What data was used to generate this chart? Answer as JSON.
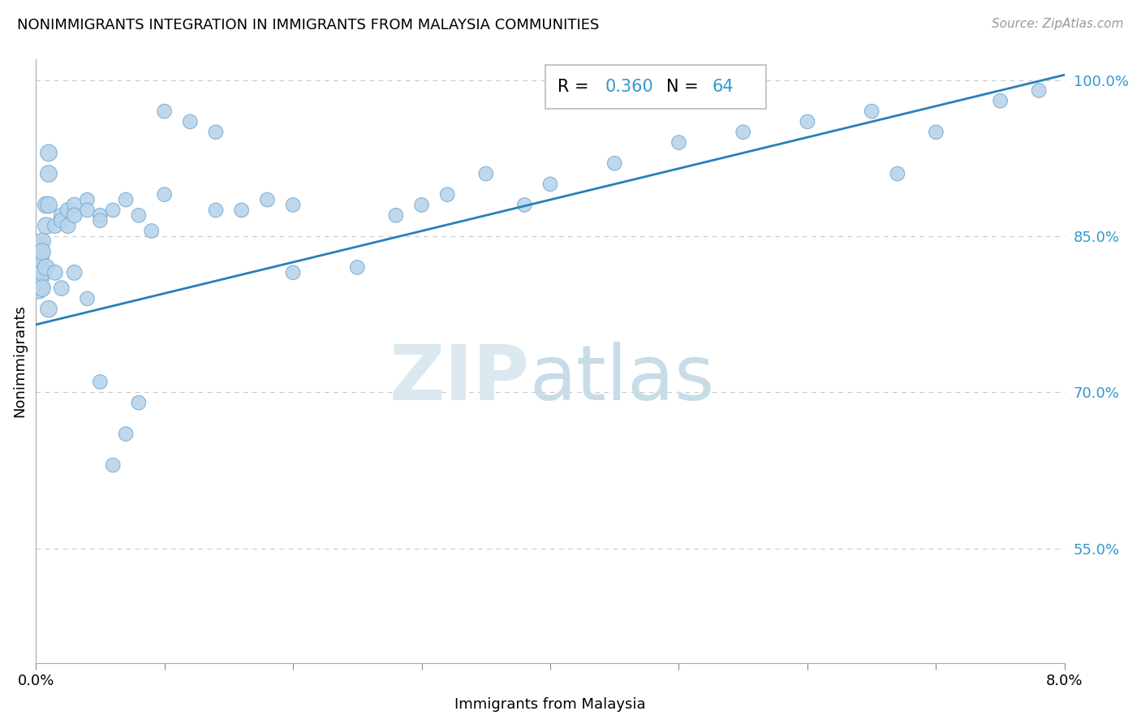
{
  "title": "NONIMMIGRANTS INTEGRATION IN IMMIGRANTS FROM MALAYSIA COMMUNITIES",
  "source": "Source: ZipAtlas.com",
  "xlabel": "Immigrants from Malaysia",
  "ylabel": "Nonimmigrants",
  "xlim": [
    0.0,
    0.08
  ],
  "ylim": [
    0.44,
    1.02
  ],
  "xticks": [
    0.0,
    0.01,
    0.02,
    0.03,
    0.04,
    0.05,
    0.06,
    0.07,
    0.08
  ],
  "xticklabels": [
    "0.0%",
    "",
    "",
    "",
    "",
    "",
    "",
    "",
    "8.0%"
  ],
  "ytick_positions": [
    0.55,
    0.7,
    0.85,
    1.0
  ],
  "yticklabels": [
    "55.0%",
    "70.0%",
    "85.0%",
    "100.0%"
  ],
  "R": 0.36,
  "N": 64,
  "dot_color": "#b8d4ea",
  "dot_edge_color": "#7aadd4",
  "line_color": "#2980b9",
  "grid_color": "#c8c8c8",
  "watermark_zip": "ZIP",
  "watermark_atlas": "atlas",
  "scatter_x": [
    0.0002,
    0.0002,
    0.0002,
    0.0002,
    0.0002,
    0.0005,
    0.0005,
    0.0005,
    0.0005,
    0.0008,
    0.0008,
    0.0008,
    0.001,
    0.001,
    0.001,
    0.001,
    0.0015,
    0.0015,
    0.002,
    0.002,
    0.002,
    0.0025,
    0.0025,
    0.003,
    0.003,
    0.003,
    0.004,
    0.004,
    0.004,
    0.005,
    0.005,
    0.005,
    0.006,
    0.006,
    0.007,
    0.007,
    0.008,
    0.008,
    0.009,
    0.01,
    0.01,
    0.012,
    0.014,
    0.014,
    0.016,
    0.018,
    0.02,
    0.02,
    0.025,
    0.028,
    0.03,
    0.032,
    0.035,
    0.038,
    0.04,
    0.045,
    0.05,
    0.055,
    0.06,
    0.065,
    0.067,
    0.07,
    0.075,
    0.078
  ],
  "scatter_y": [
    0.84,
    0.83,
    0.82,
    0.81,
    0.8,
    0.845,
    0.835,
    0.815,
    0.8,
    0.88,
    0.86,
    0.82,
    0.93,
    0.91,
    0.88,
    0.78,
    0.86,
    0.815,
    0.87,
    0.865,
    0.8,
    0.875,
    0.86,
    0.88,
    0.87,
    0.815,
    0.885,
    0.875,
    0.79,
    0.87,
    0.865,
    0.71,
    0.875,
    0.63,
    0.885,
    0.66,
    0.87,
    0.69,
    0.855,
    0.97,
    0.89,
    0.96,
    0.95,
    0.875,
    0.875,
    0.885,
    0.88,
    0.815,
    0.82,
    0.87,
    0.88,
    0.89,
    0.91,
    0.88,
    0.9,
    0.92,
    0.94,
    0.95,
    0.96,
    0.97,
    0.91,
    0.95,
    0.98,
    0.99
  ],
  "line_x0": 0.0,
  "line_y0": 0.765,
  "line_x1": 0.08,
  "line_y1": 1.005,
  "figsize": [
    14.06,
    8.92
  ],
  "dpi": 100
}
